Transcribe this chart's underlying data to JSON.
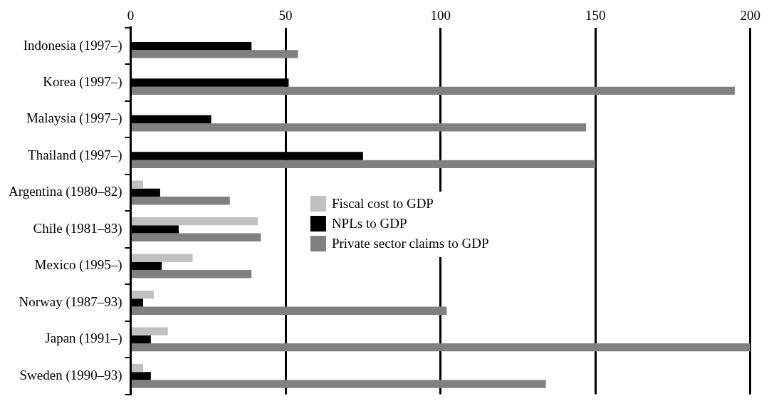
{
  "chart_data": {
    "type": "bar",
    "orientation": "horizontal",
    "categories": [
      "Indonesia (1997–)",
      "Korea (1997–)",
      "Malaysia (1997–)",
      "Thailand (1997–)",
      "Argentina (1980–82)",
      "Chile (1981–83)",
      "Mexico (1995–)",
      "Norway (1987–93)",
      "Japan (1991–)",
      "Sweden (1990–93)"
    ],
    "series": [
      {
        "name": "Fiscal cost to GDP",
        "color": "#c0c0c0",
        "values": [
          null,
          null,
          null,
          null,
          4,
          41,
          20,
          7.5,
          12,
          4
        ]
      },
      {
        "name": "NPLs to GDP",
        "color": "#000000",
        "values": [
          39,
          51,
          26,
          75,
          9.5,
          15.5,
          10,
          4,
          6.5,
          6.5
        ]
      },
      {
        "name": "Private sector claims to GDP",
        "color": "#808080",
        "values": [
          54,
          195,
          147,
          150,
          32,
          42,
          39,
          102,
          200,
          134
        ]
      }
    ],
    "xlim": [
      0,
      200
    ],
    "xticks": [
      0,
      50,
      100,
      150,
      200
    ],
    "grid": "x",
    "legend": "center"
  }
}
